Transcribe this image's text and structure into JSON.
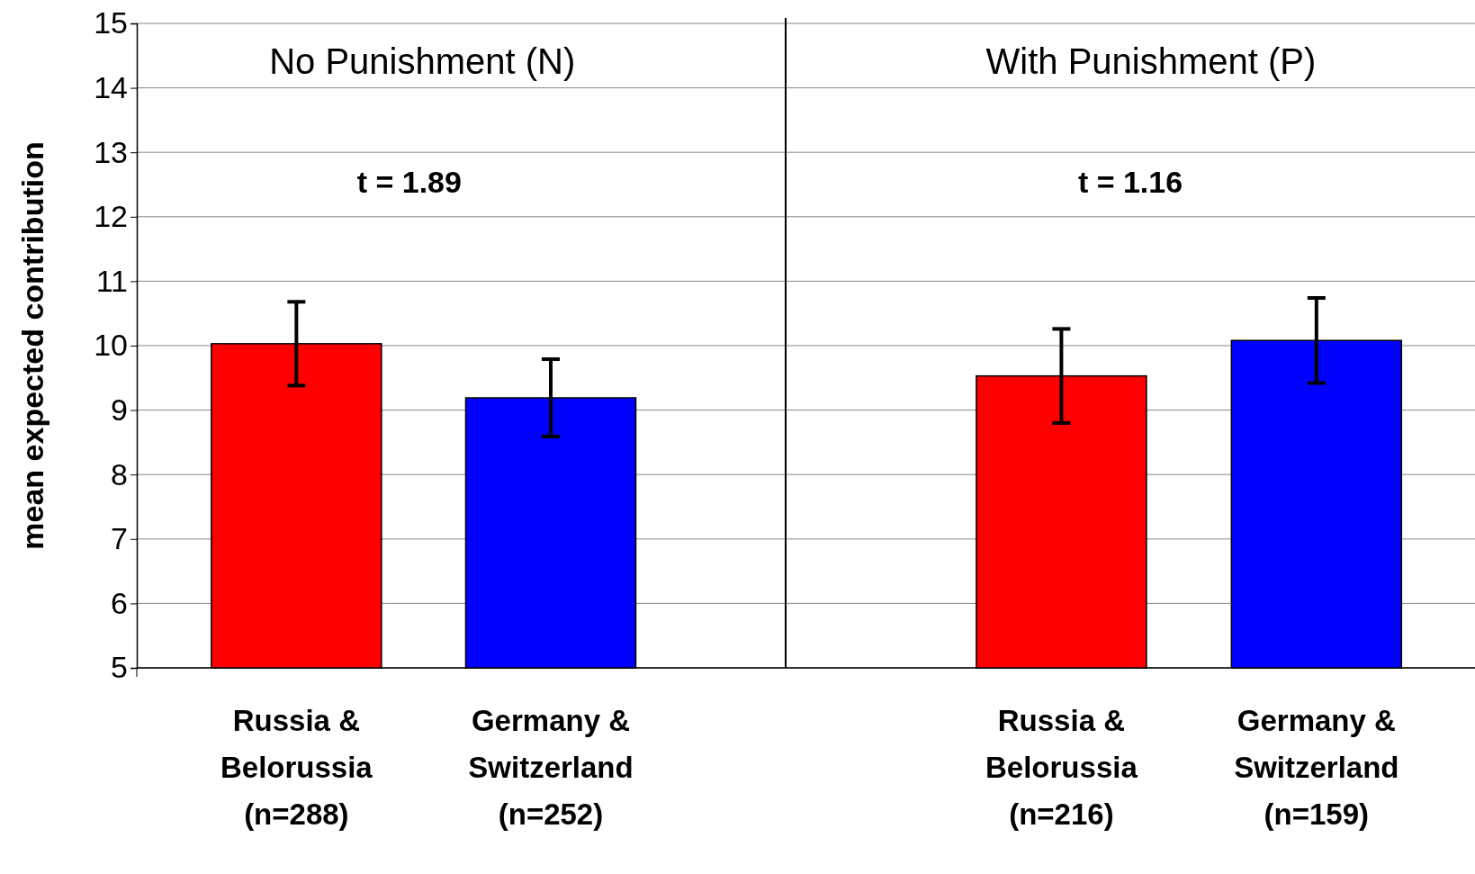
{
  "chart_data": [
    {
      "type": "bar",
      "title": "No Punishment (N)",
      "ylabel": "mean expected contribution",
      "categories": [
        "Russia &\nBelorussia\n(n=288)",
        "Germany &\nSwitzerland\n(n=252)"
      ],
      "values": [
        10.03,
        9.19
      ],
      "colors": [
        "#ff0000",
        "#0000ff"
      ],
      "errors": [
        0.65,
        0.6
      ],
      "ylim": [
        5,
        15
      ],
      "yticks": [
        5,
        6,
        7,
        8,
        9,
        10,
        11,
        12,
        13,
        14,
        15
      ],
      "grid": "y",
      "annotations": [
        "t = 1.89"
      ]
    },
    {
      "type": "bar",
      "title": "With Punishment (P)",
      "categories": [
        "Russia &\nBelorussia\n(n=216)",
        "Germany &\nSwitzerland\n(n=159)"
      ],
      "values": [
        9.53,
        10.08
      ],
      "colors": [
        "#ff0000",
        "#0000ff"
      ],
      "errors": [
        0.73,
        0.66
      ],
      "ylim": [
        5,
        15
      ],
      "yticks": [
        5,
        6,
        7,
        8,
        9,
        10,
        11,
        12,
        13,
        14,
        15
      ],
      "grid": "y",
      "tick_labels": "x",
      "annotations": [
        "t = 1.16"
      ]
    }
  ]
}
